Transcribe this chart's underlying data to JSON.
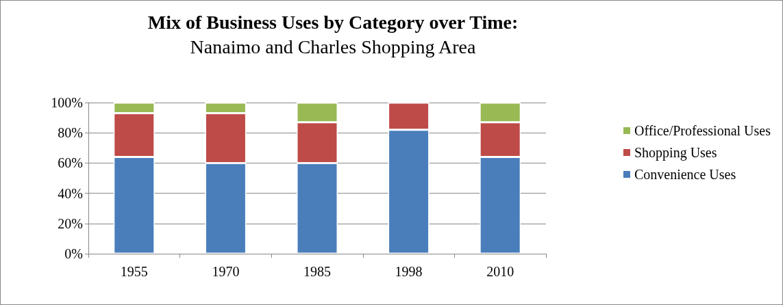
{
  "chart_data": {
    "type": "bar",
    "title": "Mix of Business Uses by Category over Time:",
    "subtitle": "Nanaimo and Charles Shopping Area",
    "categories": [
      "1955",
      "1970",
      "1985",
      "1998",
      "2010"
    ],
    "stacked": true,
    "series": [
      {
        "name": "Convenience Uses",
        "color": "#4a7ebb",
        "values": [
          64,
          60,
          60,
          82,
          64
        ]
      },
      {
        "name": "Shopping Uses",
        "color": "#be4b48",
        "values": [
          29,
          33,
          27,
          18,
          23
        ]
      },
      {
        "name": "Office/Professional Uses",
        "color": "#98b954",
        "values": [
          7,
          7,
          13,
          0,
          13
        ]
      }
    ],
    "ylim": [
      0,
      100
    ],
    "yticks": [
      {
        "value": 0,
        "label": "0%"
      },
      {
        "value": 20,
        "label": "20%"
      },
      {
        "value": 40,
        "label": "40%"
      },
      {
        "value": 60,
        "label": "60%"
      },
      {
        "value": 80,
        "label": "80%"
      },
      {
        "value": 100,
        "label": "100%"
      }
    ],
    "grid": "y",
    "legend": "right"
  }
}
